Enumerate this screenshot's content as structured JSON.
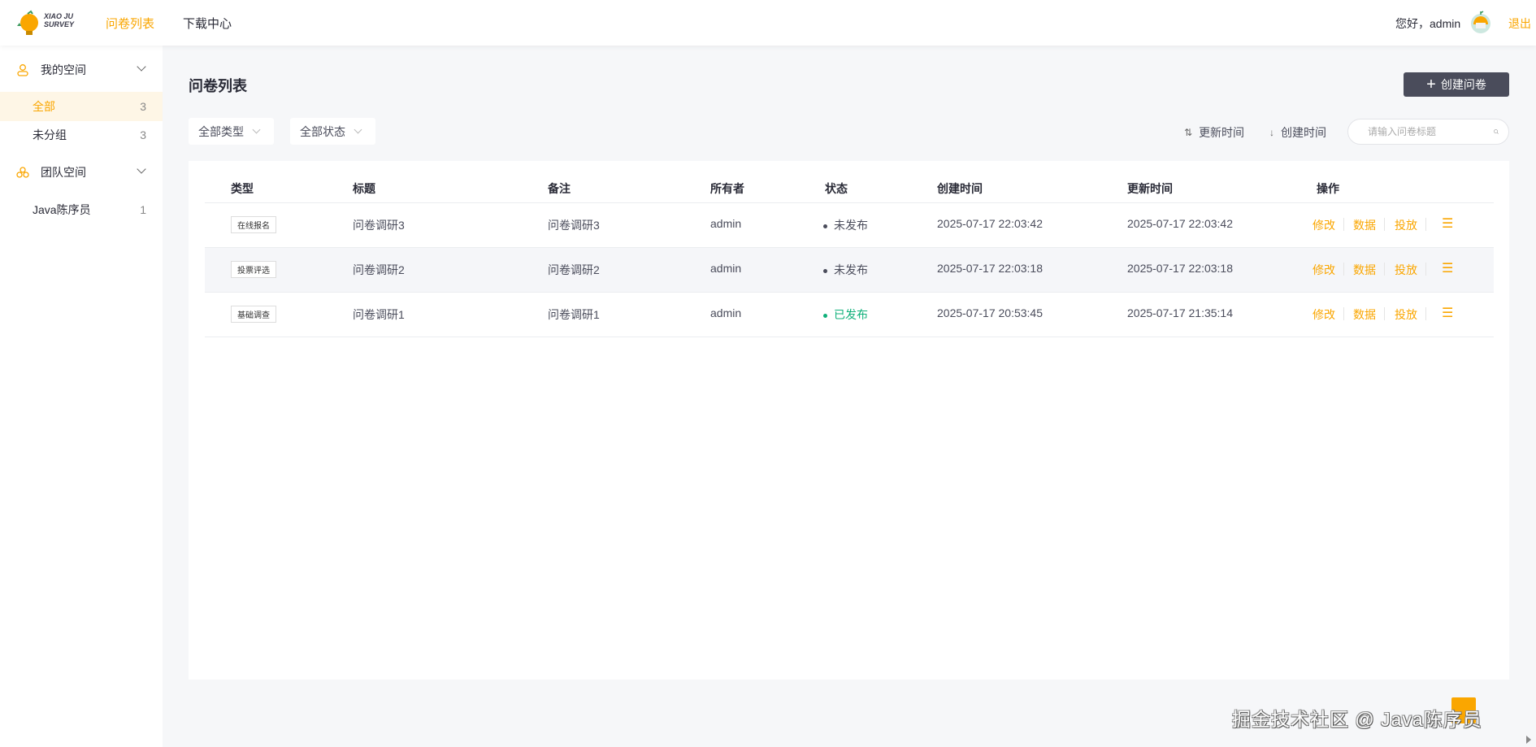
{
  "header": {
    "logo_text_1": "XIAO JU",
    "logo_text_2": "SURVEY",
    "nav": [
      {
        "label": "问卷列表",
        "active": true
      },
      {
        "label": "下载中心",
        "active": false
      }
    ],
    "greeting": "您好，admin",
    "logout": "退出"
  },
  "sidebar": {
    "groups": [
      {
        "label": "我的空间",
        "icon": "user-icon"
      },
      {
        "label": "团队空间",
        "icon": "team-icon"
      }
    ],
    "my_items": [
      {
        "label": "全部",
        "count": "3",
        "active": true
      },
      {
        "label": "未分组",
        "count": "3"
      }
    ],
    "team_items": [
      {
        "label": "Java陈序员",
        "count": "1"
      }
    ]
  },
  "main": {
    "title": "问卷列表",
    "create_button": "创建问卷",
    "filters": {
      "type": "全部类型",
      "status": "全部状态"
    },
    "sort": {
      "update": "更新时间",
      "create": "创建时间"
    },
    "search_placeholder": "请输入问卷标题",
    "columns": [
      "类型",
      "标题",
      "备注",
      "所有者",
      "状态",
      "创建时间",
      "更新时间",
      "操作"
    ],
    "rows": [
      {
        "type": "在线报名",
        "title": "问卷调研3",
        "note": "问卷调研3",
        "owner": "admin",
        "status": "未发布",
        "created": "2025-07-17 22:03:42",
        "updated": "2025-07-17 22:03:42"
      },
      {
        "type": "投票评选",
        "title": "问卷调研2",
        "note": "问卷调研2",
        "owner": "admin",
        "status": "未发布",
        "created": "2025-07-17 22:03:18",
        "updated": "2025-07-17 22:03:18"
      },
      {
        "type": "基础调查",
        "title": "问卷调研1",
        "note": "问卷调研1",
        "owner": "admin",
        "status": "已发布",
        "created": "2025-07-17 20:53:45",
        "updated": "2025-07-17 21:35:14"
      }
    ],
    "actions": [
      "修改",
      "数据",
      "投放"
    ]
  },
  "watermark": "掘金技术社区 @ Java陈序员",
  "colors": {
    "accent": "#faa600",
    "published": "#0fb07a",
    "unpublished": "#4a4c5b",
    "button_dark": "#4a4c5b"
  }
}
